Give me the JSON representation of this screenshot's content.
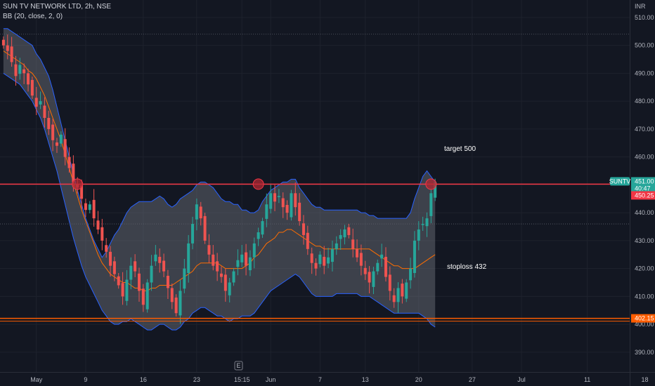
{
  "header": {
    "title": "SUN TV NETWORK LTD, 2h, NSE",
    "indicator": "BB (20, close, 2, 0)"
  },
  "annotations": {
    "target": "target 500",
    "stoploss": "stoploss 432"
  },
  "badges": {
    "symbol": "SUNTV",
    "price": "451.00",
    "countdown": "40:47",
    "high_line": "450.25",
    "low_line": "402.15"
  },
  "colors": {
    "background": "#131722",
    "up": "#26a69a",
    "down": "#ef5350",
    "band_fill": "#787b86",
    "band_edge": "#2962ff",
    "basis": "#ff6d00",
    "resistance": "#f23645",
    "support": "#ff5d00"
  },
  "chart_data": {
    "type": "candlestick",
    "title": "SUN TV NETWORK LTD, 2h, NSE",
    "currency": "INR",
    "y_ticks": [
      390,
      400,
      410,
      420,
      430,
      440,
      450,
      460,
      470,
      480,
      490,
      500,
      510
    ],
    "ylim": [
      387,
      517
    ],
    "x_ticks": [
      {
        "label": "May",
        "bar": 8
      },
      {
        "label": "9",
        "bar": 20
      },
      {
        "label": "16",
        "bar": 34
      },
      {
        "label": "23",
        "bar": 47
      },
      {
        "label": "15:15",
        "bar": 58
      },
      {
        "label": "Jun",
        "bar": 65
      },
      {
        "label": "7",
        "bar": 77
      },
      {
        "label": "13",
        "bar": 88
      },
      {
        "label": "20",
        "bar": 101
      },
      {
        "label": "27",
        "bar": 114
      },
      {
        "label": "Jul",
        "bar": 126
      },
      {
        "label": "11",
        "bar": 142
      },
      {
        "label": "18",
        "bar": 156
      }
    ],
    "closes": [
      500,
      498,
      494,
      489,
      493,
      490,
      486,
      482,
      478,
      480,
      474,
      470,
      466,
      464,
      468,
      460,
      456,
      451,
      449,
      445,
      441,
      443,
      438,
      434,
      430,
      426,
      421,
      418,
      414,
      410,
      416,
      421,
      419,
      412,
      407,
      415,
      421,
      425,
      422,
      419,
      413,
      408,
      404,
      412,
      420,
      429,
      436,
      443,
      438,
      430,
      425,
      421,
      419,
      417,
      412,
      415,
      419,
      423,
      425,
      421,
      424,
      429,
      433,
      437,
      443,
      447,
      444,
      446,
      442,
      440,
      447,
      442,
      437,
      432,
      427,
      422,
      420,
      425,
      421,
      424,
      427,
      429,
      432,
      434,
      432,
      427,
      424,
      421,
      418,
      415,
      419,
      422,
      425,
      417,
      412,
      408,
      413,
      410,
      415,
      420,
      430,
      434,
      436,
      438,
      447,
      451
    ],
    "bands": {
      "upper": [
        506,
        506,
        505,
        504,
        503,
        502,
        501,
        500,
        497,
        495,
        492,
        489,
        484,
        478,
        472,
        466,
        460,
        454,
        448,
        443,
        438,
        434,
        430,
        427,
        424,
        426,
        429,
        432,
        434,
        437,
        440,
        442,
        443,
        444,
        444,
        444,
        444,
        445,
        446,
        445,
        443,
        442,
        443,
        445,
        446,
        447,
        448,
        450,
        451,
        451,
        450,
        449,
        447,
        445,
        444,
        444,
        443,
        443,
        441,
        441,
        440,
        440,
        441,
        444,
        446,
        448,
        449,
        450,
        451,
        451,
        452,
        452,
        449,
        447,
        445,
        443,
        442,
        442,
        441,
        441,
        441,
        441,
        441,
        441,
        441,
        441,
        441,
        440,
        440,
        439,
        439,
        438,
        438,
        438,
        438,
        438,
        438,
        438,
        438,
        440,
        445,
        449,
        453,
        455,
        453,
        451
      ],
      "lower": [
        490,
        489,
        488,
        487,
        486,
        484,
        482,
        480,
        477,
        474,
        470,
        465,
        460,
        455,
        449,
        443,
        437,
        431,
        426,
        421,
        417,
        414,
        411,
        408,
        405,
        403,
        401,
        400,
        400,
        401,
        401,
        402,
        401,
        400,
        399,
        398,
        398,
        399,
        400,
        400,
        399,
        398,
        398,
        399,
        401,
        402,
        404,
        405,
        406,
        406,
        405,
        404,
        403,
        403,
        402,
        401,
        402,
        402,
        403,
        403,
        403,
        404,
        406,
        408,
        410,
        412,
        413,
        414,
        415,
        416,
        417,
        418,
        417,
        415,
        413,
        411,
        410,
        410,
        410,
        410,
        410,
        411,
        411,
        411,
        411,
        411,
        411,
        410,
        410,
        410,
        409,
        408,
        407,
        406,
        405,
        404,
        404,
        404,
        404,
        404,
        404,
        404,
        403,
        402,
        400,
        399
      ],
      "basis": [
        498,
        497,
        496,
        495,
        494,
        493,
        491,
        490,
        488,
        485,
        482,
        478,
        474,
        470,
        466,
        461,
        456,
        451,
        446,
        441,
        437,
        433,
        429,
        425,
        422,
        420,
        418,
        417,
        416,
        415,
        415,
        414,
        413,
        413,
        412,
        412,
        413,
        413,
        414,
        414,
        414,
        414,
        415,
        416,
        417,
        418,
        419,
        421,
        422,
        422,
        422,
        422,
        422,
        421,
        420,
        420,
        420,
        420,
        420,
        421,
        422,
        424,
        425,
        427,
        429,
        430,
        431,
        433,
        433,
        434,
        434,
        433,
        432,
        431,
        430,
        429,
        428,
        428,
        427,
        427,
        427,
        427,
        427,
        427,
        427,
        427,
        427,
        427,
        427,
        427,
        426,
        425,
        424,
        423,
        422,
        421,
        421,
        420,
        420,
        420,
        420,
        421,
        422,
        423,
        424,
        425
      ]
    },
    "levels": [
      {
        "label": "450.25",
        "value": 450.25
      },
      {
        "label": "402.15",
        "value": 402.15
      }
    ],
    "dotted_levels": [
      504,
      436
    ],
    "markers": [
      {
        "bar": 18,
        "value": 450.25
      },
      {
        "bar": 62,
        "value": 450.25
      },
      {
        "bar": 104,
        "value": 450.25
      }
    ],
    "last_price": 451.0
  }
}
